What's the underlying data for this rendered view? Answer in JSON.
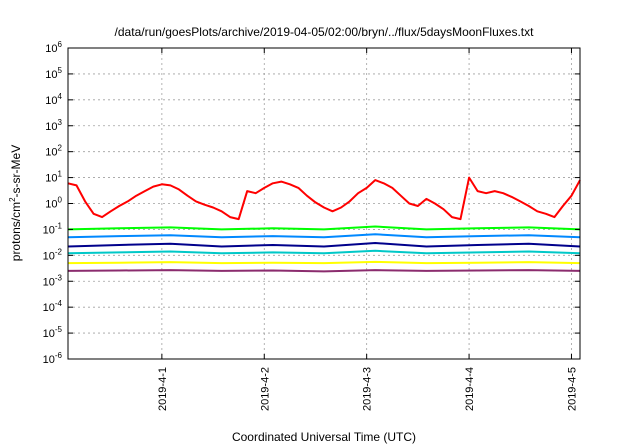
{
  "chart_data": {
    "type": "line",
    "title": "/data/run/goesPlots/archive/2019-04-05/02:00/bryn/../flux/5daysMoonFluxes.txt",
    "xlabel": "Coordinated Universal Time (UTC)",
    "ylabel": "protons/cm²-s-sr-MeV",
    "yscale": "log",
    "ylim": [
      1e-06,
      1000000.0
    ],
    "xlim": [
      "2019-03-31T02:00",
      "2019-04-05T02:00"
    ],
    "grid": true,
    "y_ticks": [
      {
        "value": 1e-06,
        "base": "10",
        "exp": "-6"
      },
      {
        "value": 1e-05,
        "base": "10",
        "exp": "-5"
      },
      {
        "value": 0.0001,
        "base": "10",
        "exp": "-4"
      },
      {
        "value": 0.001,
        "base": "10",
        "exp": "-3"
      },
      {
        "value": 0.01,
        "base": "10",
        "exp": "-2"
      },
      {
        "value": 0.1,
        "base": "10",
        "exp": "-1"
      },
      {
        "value": 1.0,
        "base": "10",
        "exp": "0"
      },
      {
        "value": 10.0,
        "base": "10",
        "exp": "1"
      },
      {
        "value": 100.0,
        "base": "10",
        "exp": "2"
      },
      {
        "value": 1000.0,
        "base": "10",
        "exp": "3"
      },
      {
        "value": 10000.0,
        "base": "10",
        "exp": "4"
      },
      {
        "value": 100000.0,
        "base": "10",
        "exp": "5"
      },
      {
        "value": 1000000.0,
        "base": "10",
        "exp": "6"
      }
    ],
    "x_ticks": [
      {
        "value": "2019-04-01T00:00",
        "label": "2019-4-1"
      },
      {
        "value": "2019-04-02T00:00",
        "label": "2019-4-2"
      },
      {
        "value": "2019-04-03T00:00",
        "label": "2019-4-3"
      },
      {
        "value": "2019-04-04T00:00",
        "label": "2019-4-4"
      },
      {
        "value": "2019-04-05T00:00",
        "label": "2019-4-5"
      }
    ],
    "series": [
      {
        "color": "#ff0000",
        "x": [
          "2019-03-31T02:00",
          "2019-03-31T04:00",
          "2019-03-31T06:00",
          "2019-03-31T08:00",
          "2019-03-31T10:00",
          "2019-03-31T12:00",
          "2019-03-31T14:00",
          "2019-03-31T16:00",
          "2019-03-31T18:00",
          "2019-03-31T20:00",
          "2019-03-31T22:00",
          "2019-04-01T00:00",
          "2019-04-01T02:00",
          "2019-04-01T04:00",
          "2019-04-01T06:00",
          "2019-04-01T08:00",
          "2019-04-01T10:00",
          "2019-04-01T12:00",
          "2019-04-01T14:00",
          "2019-04-01T16:00",
          "2019-04-01T18:00",
          "2019-04-01T20:00",
          "2019-04-01T22:00",
          "2019-04-02T00:00",
          "2019-04-02T02:00",
          "2019-04-02T04:00",
          "2019-04-02T06:00",
          "2019-04-02T08:00",
          "2019-04-02T10:00",
          "2019-04-02T12:00",
          "2019-04-02T14:00",
          "2019-04-02T16:00",
          "2019-04-02T18:00",
          "2019-04-02T20:00",
          "2019-04-02T22:00",
          "2019-04-03T00:00",
          "2019-04-03T02:00",
          "2019-04-03T04:00",
          "2019-04-03T06:00",
          "2019-04-03T08:00",
          "2019-04-03T10:00",
          "2019-04-03T12:00",
          "2019-04-03T14:00",
          "2019-04-03T16:00",
          "2019-04-03T18:00",
          "2019-04-03T20:00",
          "2019-04-03T22:00",
          "2019-04-04T00:00",
          "2019-04-04T02:00",
          "2019-04-04T04:00",
          "2019-04-04T06:00",
          "2019-04-04T08:00",
          "2019-04-04T10:00",
          "2019-04-04T12:00",
          "2019-04-04T14:00",
          "2019-04-04T16:00",
          "2019-04-04T18:00",
          "2019-04-04T20:00",
          "2019-04-04T22:00",
          "2019-04-05T00:00",
          "2019-04-05T02:00"
        ],
        "values": [
          6,
          5,
          1.2,
          0.4,
          0.3,
          0.5,
          0.8,
          1.2,
          2,
          3,
          4.5,
          5.5,
          5,
          3.5,
          2,
          1.2,
          0.9,
          0.7,
          0.5,
          0.3,
          0.25,
          3,
          2.5,
          4,
          6,
          7,
          5.5,
          4,
          2,
          1.1,
          0.7,
          0.5,
          0.7,
          1.2,
          2.5,
          4,
          8,
          6,
          4,
          2,
          1,
          0.8,
          1.5,
          1,
          0.6,
          0.3,
          0.25,
          10,
          3,
          2.5,
          3,
          2.5,
          1.8,
          1.2,
          0.8,
          0.5,
          0.4,
          0.3,
          0.8,
          2,
          8
        ]
      },
      {
        "color": "#00ff00",
        "x": [
          "2019-03-31T02:00",
          "2019-03-31T14:00",
          "2019-04-01T02:00",
          "2019-04-01T14:00",
          "2019-04-02T02:00",
          "2019-04-02T14:00",
          "2019-04-03T02:00",
          "2019-04-03T14:00",
          "2019-04-04T02:00",
          "2019-04-04T14:00",
          "2019-04-05T02:00"
        ],
        "values": [
          0.1,
          0.11,
          0.12,
          0.1,
          0.11,
          0.1,
          0.13,
          0.1,
          0.11,
          0.12,
          0.1
        ]
      },
      {
        "color": "#0088ff",
        "x": [
          "2019-03-31T02:00",
          "2019-03-31T14:00",
          "2019-04-01T02:00",
          "2019-04-01T14:00",
          "2019-04-02T02:00",
          "2019-04-02T14:00",
          "2019-04-03T02:00",
          "2019-04-03T14:00",
          "2019-04-04T02:00",
          "2019-04-04T14:00",
          "2019-04-05T02:00"
        ],
        "values": [
          0.05,
          0.055,
          0.06,
          0.05,
          0.055,
          0.05,
          0.065,
          0.05,
          0.055,
          0.06,
          0.05
        ]
      },
      {
        "color": "#00008b",
        "x": [
          "2019-03-31T02:00",
          "2019-03-31T14:00",
          "2019-04-01T02:00",
          "2019-04-01T14:00",
          "2019-04-02T02:00",
          "2019-04-02T14:00",
          "2019-04-03T02:00",
          "2019-04-03T14:00",
          "2019-04-04T02:00",
          "2019-04-04T14:00",
          "2019-04-05T02:00"
        ],
        "values": [
          0.022,
          0.025,
          0.028,
          0.022,
          0.025,
          0.022,
          0.03,
          0.022,
          0.025,
          0.028,
          0.022
        ]
      },
      {
        "color": "#00c8c8",
        "x": [
          "2019-03-31T02:00",
          "2019-03-31T14:00",
          "2019-04-01T02:00",
          "2019-04-01T14:00",
          "2019-04-02T02:00",
          "2019-04-02T14:00",
          "2019-04-03T02:00",
          "2019-04-03T14:00",
          "2019-04-04T02:00",
          "2019-04-04T14:00",
          "2019-04-05T02:00"
        ],
        "values": [
          0.012,
          0.013,
          0.014,
          0.012,
          0.013,
          0.012,
          0.015,
          0.012,
          0.013,
          0.014,
          0.012
        ]
      },
      {
        "color": "#ffff00",
        "x": [
          "2019-03-31T02:00",
          "2019-03-31T14:00",
          "2019-04-01T02:00",
          "2019-04-01T14:00",
          "2019-04-02T02:00",
          "2019-04-02T14:00",
          "2019-04-03T02:00",
          "2019-04-03T14:00",
          "2019-04-04T02:00",
          "2019-04-04T14:00",
          "2019-04-05T02:00"
        ],
        "values": [
          0.005,
          0.0052,
          0.0055,
          0.005,
          0.0052,
          0.005,
          0.0056,
          0.005,
          0.0052,
          0.0055,
          0.005
        ]
      },
      {
        "color": "#8b2c6e",
        "x": [
          "2019-03-31T02:00",
          "2019-03-31T14:00",
          "2019-04-01T02:00",
          "2019-04-01T14:00",
          "2019-04-02T02:00",
          "2019-04-02T14:00",
          "2019-04-03T02:00",
          "2019-04-03T14:00",
          "2019-04-04T02:00",
          "2019-04-04T14:00",
          "2019-04-05T02:00"
        ],
        "values": [
          0.0025,
          0.0026,
          0.0027,
          0.0025,
          0.0026,
          0.0024,
          0.0027,
          0.0025,
          0.0026,
          0.0027,
          0.0025
        ]
      }
    ]
  }
}
